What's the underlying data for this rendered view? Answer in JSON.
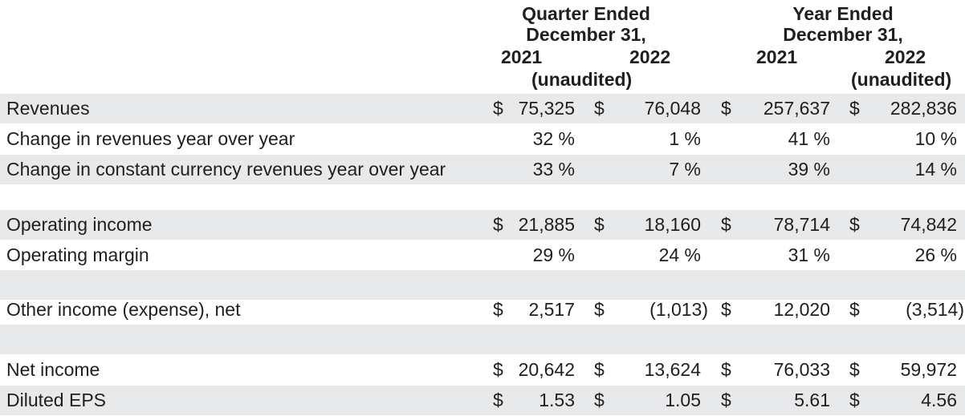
{
  "header": {
    "quarter_group": [
      "Quarter Ended",
      "December 31,"
    ],
    "year_group": [
      "Year Ended",
      "December 31,"
    ],
    "years": [
      "2021",
      "2022",
      "2021",
      "2022"
    ],
    "quarter_unaudited": "(unaudited)",
    "year_unaudited": "(unaudited)"
  },
  "rows": [
    {
      "label": "Revenues",
      "shaded": true,
      "dollar": true,
      "values": [
        "75,325",
        "76,048",
        "257,637",
        "282,836"
      ]
    },
    {
      "label": "Change in revenues year over year",
      "shaded": false,
      "dollar": false,
      "values": [
        "32 %",
        "1 %",
        "41 %",
        "10 %"
      ]
    },
    {
      "label": "Change in constant currency revenues year over year",
      "shaded": true,
      "dollar": false,
      "values": [
        "33 %",
        "7 %",
        "39 %",
        "14 %"
      ]
    },
    {
      "label": "",
      "shaded": false,
      "dollar": false,
      "values": [
        "",
        "",
        "",
        ""
      ]
    },
    {
      "label": "Operating income",
      "shaded": true,
      "dollar": true,
      "values": [
        "21,885",
        "18,160",
        "78,714",
        "74,842"
      ]
    },
    {
      "label": "Operating margin",
      "shaded": false,
      "dollar": false,
      "values": [
        "29 %",
        "24 %",
        "31 %",
        "26 %"
      ]
    },
    {
      "label": "",
      "shaded": true,
      "dollar": false,
      "values": [
        "",
        "",
        "",
        ""
      ]
    },
    {
      "label": "Other income (expense), net",
      "shaded": false,
      "dollar": true,
      "values": [
        "2,517",
        "(1,013)",
        "12,020",
        "(3,514)"
      ]
    },
    {
      "label": "",
      "shaded": true,
      "dollar": false,
      "values": [
        "",
        "",
        "",
        ""
      ]
    },
    {
      "label": "Net income",
      "shaded": false,
      "dollar": true,
      "values": [
        "20,642",
        "13,624",
        "76,033",
        "59,972"
      ]
    },
    {
      "label": "Diluted EPS",
      "shaded": true,
      "dollar": true,
      "values": [
        "1.53",
        "1.05",
        "5.61",
        "4.56"
      ]
    }
  ],
  "currency_symbol": "$",
  "colors": {
    "row_shade": "#e8e9eb",
    "text": "#1f1f1f"
  }
}
